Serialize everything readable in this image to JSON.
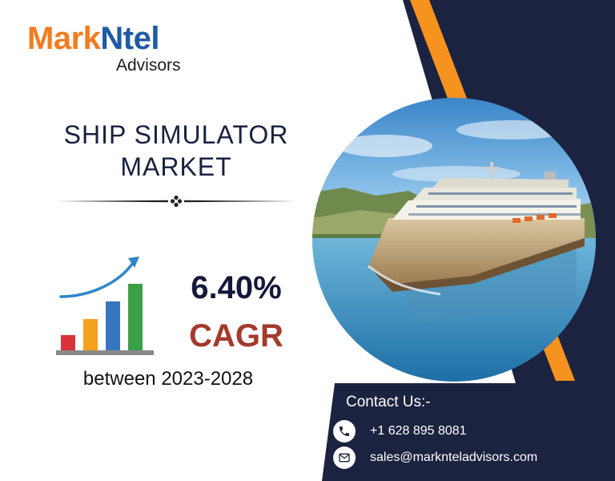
{
  "brand": {
    "name_part1": "Mark",
    "name_part2": "Ntel",
    "sub": "Advisors",
    "color_orange": "#f47b20",
    "color_blue": "#1f5aa6"
  },
  "title": {
    "line1": "SHIP SIMULATOR",
    "line2": "MARKET"
  },
  "stats": {
    "cagr_value": "6.40%",
    "cagr_label": "CAGR",
    "period": "between 2023-2028"
  },
  "contact": {
    "title": "Contact Us:-",
    "phone": "+1 628 895 8081",
    "email": "sales@marknteladvisors.com"
  },
  "colors": {
    "navy": "#1b2340",
    "accent_orange": "#f6921e",
    "cagr_red": "#a33a2c"
  },
  "icons": {
    "phone": "phone-icon",
    "email": "envelope-icon",
    "growth": "bar-chart-growth-icon"
  }
}
